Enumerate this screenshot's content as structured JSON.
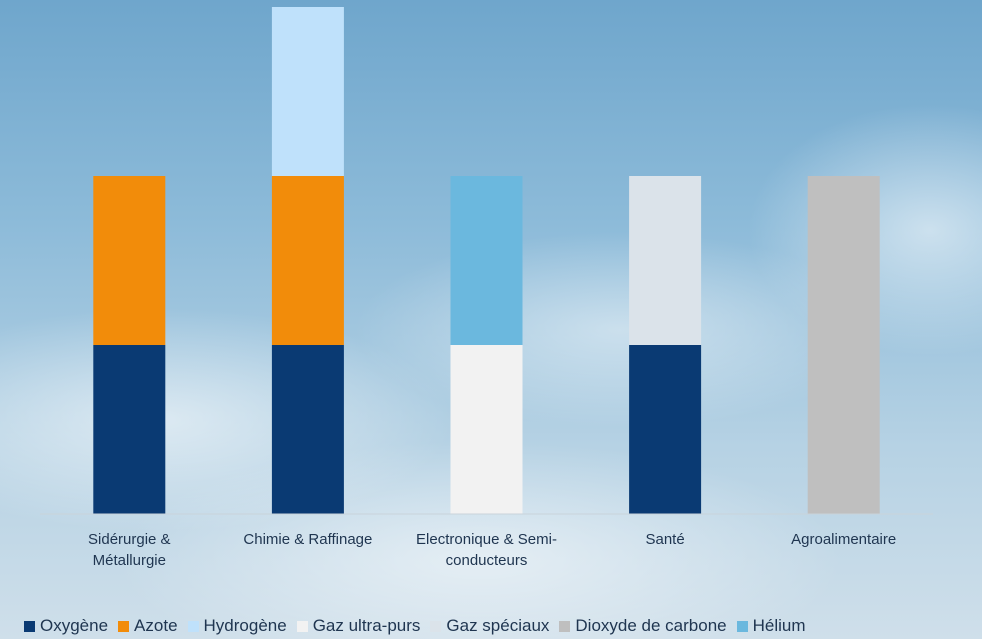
{
  "chart_data": {
    "type": "bar",
    "stacked": true,
    "categories": [
      "Sidérurgie &\nMétallurgie",
      "Chimie & Raffinage",
      "Electronique & Semi-\nconducteurs",
      "Santé",
      "Agroalimentaire"
    ],
    "series": [
      {
        "name": "Oxygène",
        "color": "#0a3a73",
        "values": [
          1,
          1,
          0,
          1,
          0
        ]
      },
      {
        "name": "Azote",
        "color": "#f28c0a",
        "values": [
          1,
          1,
          0,
          0,
          0
        ]
      },
      {
        "name": "Hydrogène",
        "color": "#bfe1fb",
        "values": [
          0,
          1,
          0,
          0,
          0
        ]
      },
      {
        "name": "Gaz ultra-purs",
        "color": "#f2f2f2",
        "values": [
          0,
          0,
          1,
          0,
          0
        ]
      },
      {
        "name": "Gaz spéciaux",
        "color": "#dbe3ea",
        "values": [
          0,
          0,
          0,
          1,
          0
        ]
      },
      {
        "name": "Dioxyde de carbone",
        "color": "#bfbfbf",
        "values": [
          0,
          0,
          0,
          0,
          2
        ]
      },
      {
        "name": "Hélium",
        "color": "#6bb8de",
        "values": [
          0,
          0,
          1,
          0,
          0
        ]
      }
    ],
    "legend_position": "bottom",
    "grid": false
  }
}
